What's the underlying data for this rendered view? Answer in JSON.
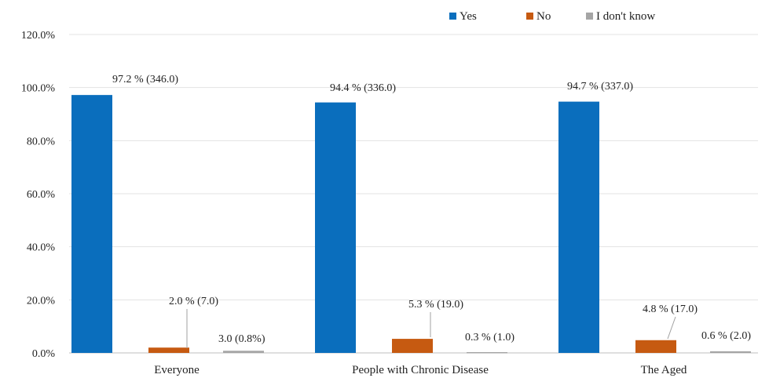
{
  "chart_data": {
    "type": "bar",
    "title": "",
    "xlabel": "",
    "ylabel": "",
    "ylim": [
      0,
      120
    ],
    "yticks": [
      "0.0%",
      "20.0%",
      "40.0%",
      "60.0%",
      "80.0%",
      "100.0%",
      "120.0%"
    ],
    "grid": true,
    "legend_position": "top-right",
    "categories": [
      "Everyone",
      "People with Chronic Disease",
      "The Aged"
    ],
    "series": [
      {
        "name": "Yes",
        "color": "#0a6ebd",
        "values": [
          97.2,
          94.4,
          94.7
        ],
        "labels": [
          "97.2 % (346.0)",
          "94.4 % (336.0)",
          "94.7 % (337.0)"
        ]
      },
      {
        "name": "No",
        "color": "#c65a11",
        "values": [
          2.0,
          5.3,
          4.8
        ],
        "labels": [
          "2.0 % (7.0)",
          "5.3 % (19.0)",
          "4.8 % (17.0)"
        ]
      },
      {
        "name": "I don't know",
        "color": "#a5a5a5",
        "values": [
          0.8,
          0.3,
          0.6
        ],
        "labels": [
          "3.0 (0.8%)",
          "0.3 % (1.0)",
          "0.6 % (2.0)"
        ]
      }
    ]
  }
}
